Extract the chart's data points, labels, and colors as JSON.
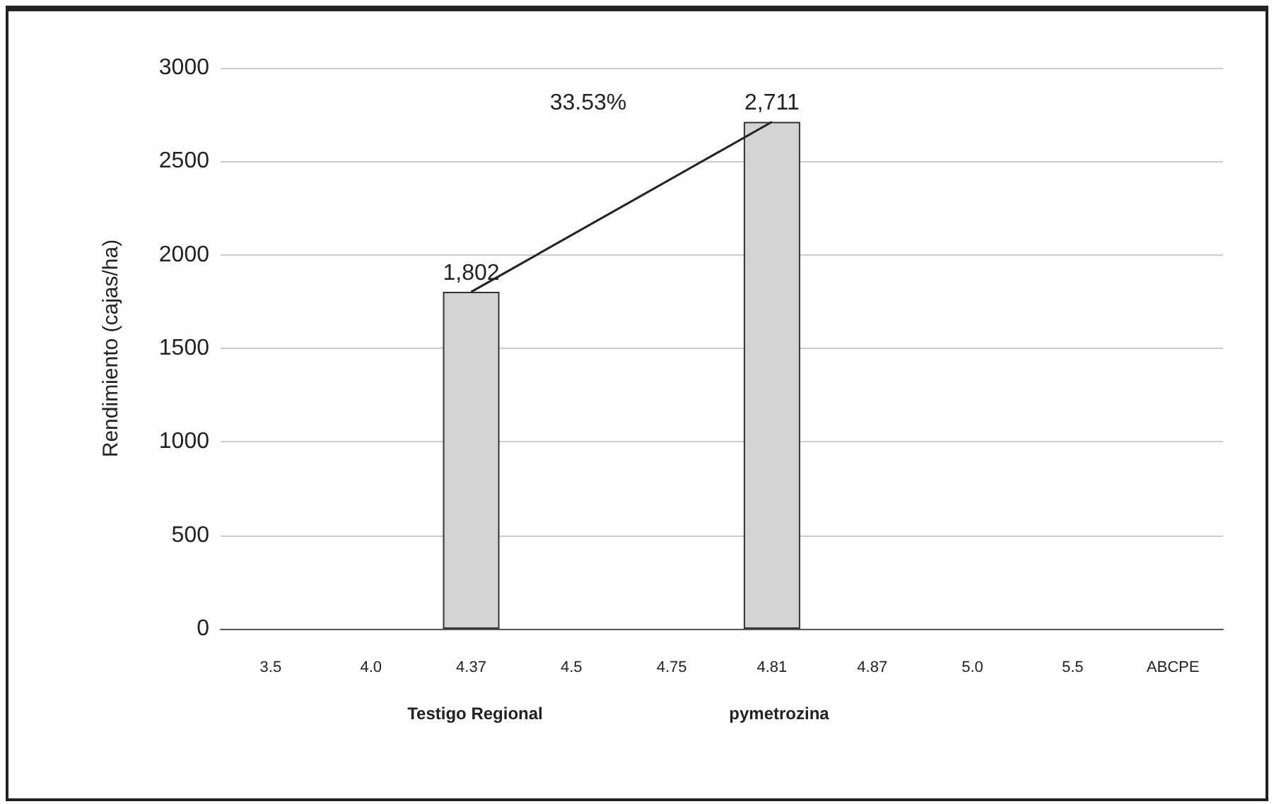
{
  "chart_data": {
    "type": "bar",
    "ylabel": "Rendimiento (cajas/ha)",
    "categories": [
      "3.5",
      "4.0",
      "4.37",
      "4.5",
      "4.75",
      "4.81",
      "4.87",
      "5.0",
      "5.5",
      "ABCPE"
    ],
    "series": [
      {
        "color": "#d4d4d4",
        "values": [
          null,
          null,
          1802,
          null,
          null,
          2711,
          null,
          null,
          null,
          null
        ],
        "value_labels": [
          null,
          null,
          "1,802",
          null,
          null,
          "2,711",
          null,
          null,
          null,
          null
        ]
      },
      {
        "type": "line",
        "color": "#222222",
        "values": [
          null,
          null,
          1802,
          null,
          null,
          2711,
          null,
          null,
          null,
          null
        ]
      }
    ],
    "ylim": [
      0,
      3000
    ],
    "yticks": [
      0,
      500,
      1000,
      1500,
      2000,
      2500,
      3000
    ],
    "grid": "y",
    "marker": "none",
    "annotations": [
      "33.53%",
      "Testigo Regional",
      "pymetrozina"
    ]
  }
}
